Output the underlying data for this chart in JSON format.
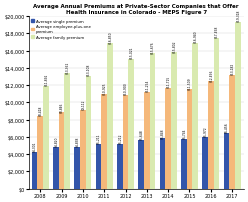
{
  "title": "Average Annual Premiums at Private-Sector Companies that Offer\nHealth Insurance in Colorado - MEPS Figure 7",
  "years": [
    2008,
    2009,
    2010,
    2011,
    2012,
    2013,
    2014,
    2015,
    2016,
    2017
  ],
  "single": [
    4301,
    4820,
    4838,
    5211,
    5212,
    5648,
    5848,
    5744,
    5972,
    6456
  ],
  "employee_plus": [
    8418,
    8846,
    9112,
    10925,
    10900,
    11254,
    11715,
    11509,
    12456,
    13182
  ],
  "family": [
    11892,
    13362,
    13108,
    16850,
    15021,
    15676,
    15802,
    16940,
    17458,
    19318
  ],
  "single_labels": [
    "$4,301",
    "$4,820",
    "$4,838",
    "$5,211",
    "$5,212",
    "$5,648",
    "$5,848",
    "$5,744",
    "$5,972",
    "$6,456"
  ],
  "emp_labels": [
    "$8,418",
    "$8,846",
    "$9,112",
    "$10,925",
    "$10,900",
    "$11,254",
    "$11,715",
    "$11,509",
    "$12,456",
    "$13,182"
  ],
  "family_labels": [
    "$11,892",
    "$13,362",
    "$13,108",
    "$16,850",
    "$15,021",
    "$15,676",
    "$15,802",
    "$16,940",
    "$17,458",
    "$19,318"
  ],
  "color_single": "#3355AA",
  "color_emp": "#F5B87A",
  "color_family": "#D9EAB0",
  "background_color": "#FFFFFF",
  "ylim": [
    0,
    20000
  ],
  "yticks": [
    0,
    2000,
    4000,
    6000,
    8000,
    10000,
    12000,
    14000,
    16000,
    18000,
    20000
  ],
  "legend_labels": [
    "Average single premium",
    "Average employee-plus-one\npremium",
    "Average family premium"
  ],
  "title_fontsize": 4,
  "tick_fontsize": 3.5,
  "label_fontsize": 2.2
}
